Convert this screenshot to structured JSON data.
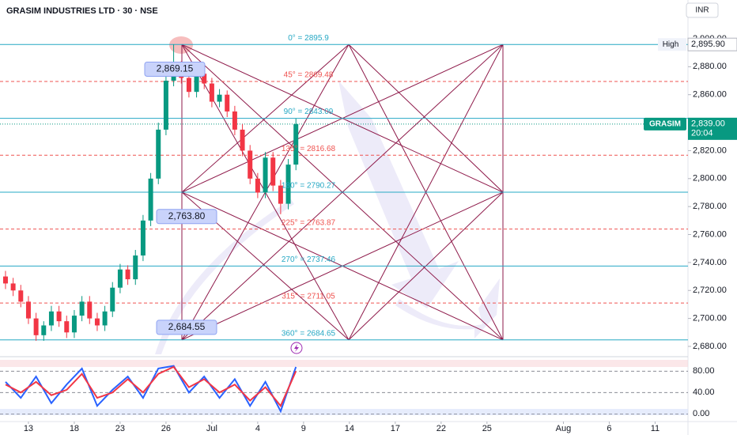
{
  "chart_data": {
    "type": "candlestick",
    "title": "GRASIM INDUSTRIES LTD · 30 · NSE",
    "currency": "INR",
    "xlim": [
      -1.86,
      43.15
    ],
    "ylim": [
      2673.2,
      2927.7
    ],
    "xticks": [
      {
        "value": 0,
        "label": "13"
      },
      {
        "value": 3,
        "label": "18"
      },
      {
        "value": 6,
        "label": "23"
      },
      {
        "value": 9,
        "label": "26"
      },
      {
        "value": 12,
        "label": "Jul"
      },
      {
        "value": 15,
        "label": "4"
      },
      {
        "value": 18,
        "label": "9"
      },
      {
        "value": 21,
        "label": "14"
      },
      {
        "value": 24,
        "label": "17"
      },
      {
        "value": 27,
        "label": "22"
      },
      {
        "value": 30,
        "label": "25"
      },
      {
        "value": 35,
        "label": "Aug"
      },
      {
        "value": 38,
        "label": "6"
      },
      {
        "value": 41,
        "label": "11"
      }
    ],
    "yticks": [
      {
        "value": 2900,
        "label": "2,900.00"
      },
      {
        "value": 2880,
        "label": "2,880.00"
      },
      {
        "value": 2860,
        "label": "2,860.00"
      },
      {
        "value": 2840,
        "label": "2,840.00"
      },
      {
        "value": 2820,
        "label": "2,820.00"
      },
      {
        "value": 2800,
        "label": "2,800.00"
      },
      {
        "value": 2780,
        "label": "2,780.00"
      },
      {
        "value": 2760,
        "label": "2,760.00"
      },
      {
        "value": 2740,
        "label": "2,740.00"
      },
      {
        "value": 2720,
        "label": "2,720.00"
      },
      {
        "value": 2700,
        "label": "2,700.00"
      },
      {
        "value": 2680,
        "label": "2,680.00"
      }
    ],
    "up_color": "#089981",
    "down_color": "#f23645",
    "candles": {
      "x": [
        -1.5,
        -1,
        -0.5,
        0,
        0.5,
        1,
        1.5,
        2,
        2.5,
        3,
        3.5,
        4,
        4.5,
        5,
        5.5,
        6,
        6.5,
        7,
        7.5,
        8,
        8.5,
        9,
        9.5,
        10,
        10.5,
        11,
        11.5,
        12,
        12.5,
        13,
        13.5,
        14,
        14.5,
        15,
        15.5,
        16,
        16.5,
        17,
        17.5
      ],
      "open": [
        2730,
        2725,
        2720,
        2712,
        2700,
        2688,
        2695,
        2705,
        2698,
        2690,
        2702,
        2712,
        2700,
        2695,
        2705,
        2722,
        2735,
        2728,
        2745,
        2770,
        2800,
        2835,
        2870,
        2880,
        2872,
        2862,
        2875,
        2868,
        2855,
        2860,
        2848,
        2835,
        2820,
        2800,
        2790,
        2815,
        2795,
        2782,
        2810
      ],
      "high": [
        2734,
        2729,
        2724,
        2716,
        2704,
        2698,
        2709,
        2709,
        2702,
        2706,
        2716,
        2716,
        2704,
        2709,
        2726,
        2739,
        2738,
        2749,
        2774,
        2804,
        2840,
        2874,
        2895.9,
        2884,
        2876,
        2878,
        2879,
        2872,
        2864,
        2863,
        2852,
        2839,
        2824,
        2804,
        2819,
        2819,
        2799,
        2814,
        2843
      ],
      "low": [
        2721,
        2716,
        2708,
        2696,
        2684,
        2684,
        2691,
        2694,
        2686,
        2686,
        2698,
        2696,
        2691,
        2691,
        2701,
        2718,
        2724,
        2724,
        2741,
        2766,
        2796,
        2831,
        2866,
        2868,
        2858,
        2858,
        2864,
        2851,
        2851,
        2844,
        2831,
        2816,
        2796,
        2786,
        2786,
        2791,
        2774.5,
        2778,
        2806
      ],
      "close": [
        2725,
        2720,
        2712,
        2700,
        2688,
        2695,
        2705,
        2698,
        2690,
        2702,
        2712,
        2700,
        2695,
        2705,
        2722,
        2735,
        2728,
        2745,
        2770,
        2800,
        2835,
        2870,
        2880,
        2872,
        2862,
        2875,
        2868,
        2855,
        2860,
        2848,
        2835,
        2820,
        2800,
        2790,
        2815,
        2795,
        2782,
        2810,
        2839
      ]
    },
    "levels": [
      {
        "value": 2895.9,
        "label": "0° = 2895.9",
        "color": "#26a8c4",
        "dashed": false
      },
      {
        "value": 2869.48,
        "label": "45° = 2869.48",
        "color": "#ef5350",
        "dashed": true
      },
      {
        "value": 2843.09,
        "label": "90° = 2843.09",
        "color": "#26a8c4",
        "dashed": false
      },
      {
        "value": 2816.68,
        "label": "135° = 2816.68",
        "color": "#ef5350",
        "dashed": true
      },
      {
        "value": 2790.27,
        "label": "180° = 2790.27",
        "color": "#26a8c4",
        "dashed": false
      },
      {
        "value": 2763.87,
        "label": "225° = 2763.87",
        "color": "#ef5350",
        "dashed": true
      },
      {
        "value": 2737.46,
        "label": "270° = 2737.46",
        "color": "#26a8c4",
        "dashed": false
      },
      {
        "value": 2711.05,
        "label": "315° = 2711.05",
        "color": "#ef5350",
        "dashed": true
      },
      {
        "value": 2684.65,
        "label": "360° = 2684.65",
        "color": "#26a8c4",
        "dashed": false
      }
    ],
    "callouts": [
      {
        "value": 2869.15,
        "label": "2,869.15"
      },
      {
        "value": 2763.8,
        "label": "2,763.80"
      },
      {
        "value": 2684.55,
        "label": "2,684.55"
      }
    ],
    "high_tag": "High",
    "high_value": {
      "value": 2895.9,
      "label": "2,895.90"
    },
    "symbol": "GRASIM",
    "last_price": {
      "value": 2839,
      "label": "2,839.00"
    },
    "countdown": "20:04",
    "oscillator": {
      "ylim": [
        -14.3,
        107.1
      ],
      "yticks": [
        {
          "value": 80,
          "label": "80.00"
        },
        {
          "value": 40,
          "label": "40.00"
        },
        {
          "value": 0,
          "label": "0.00"
        }
      ],
      "x": [
        -1.5,
        -0.5,
        0.5,
        1.5,
        2.5,
        3.5,
        4.5,
        5.5,
        6.5,
        7.5,
        8.5,
        9.5,
        10.5,
        11.5,
        12.5,
        13.5,
        14.5,
        15.5,
        16.5,
        17.5
      ],
      "series": [
        {
          "color": "#2962ff",
          "values": [
            60,
            30,
            70,
            20,
            55,
            85,
            15,
            45,
            70,
            30,
            85,
            90,
            40,
            70,
            30,
            65,
            15,
            60,
            5,
            88
          ]
        },
        {
          "color": "#f23645",
          "values": [
            55,
            40,
            60,
            35,
            45,
            75,
            30,
            40,
            65,
            40,
            75,
            88,
            50,
            65,
            40,
            55,
            25,
            50,
            15,
            80
          ]
        }
      ]
    }
  }
}
